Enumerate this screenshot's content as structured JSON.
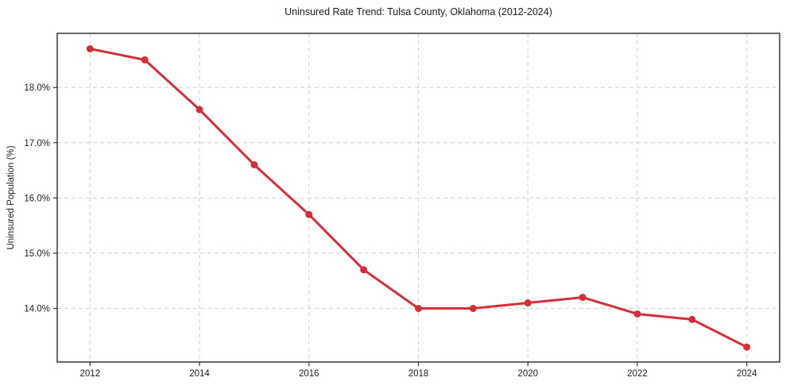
{
  "chart_data": {
    "type": "line",
    "title": "Uninsured Rate Trend: Tulsa County, Oklahoma (2012-2024)",
    "xlabel": "",
    "ylabel": "Uninsured Population (%)",
    "x": [
      2012,
      2013,
      2014,
      2015,
      2016,
      2017,
      2018,
      2019,
      2020,
      2021,
      2022,
      2023,
      2024
    ],
    "values": [
      18.7,
      18.5,
      17.6,
      16.6,
      15.7,
      14.7,
      14.0,
      14.0,
      14.1,
      14.2,
      13.9,
      13.8,
      13.3
    ],
    "xlim": [
      2011.4,
      2024.6
    ],
    "ylim": [
      13.03,
      18.98
    ],
    "xticks": {
      "values": [
        2012,
        2014,
        2016,
        2018,
        2020,
        2022,
        2024
      ],
      "labels": [
        "2012",
        "2014",
        "2016",
        "2018",
        "2020",
        "2022",
        "2024"
      ]
    },
    "yticks": {
      "values": [
        14,
        15,
        16,
        17,
        18
      ],
      "labels": [
        "14.0%",
        "15.0%",
        "16.0%",
        "17.0%",
        "18.0%"
      ]
    },
    "grid": true,
    "legend": "none",
    "line_color": "#d32f38",
    "marker_color": "#d32f38",
    "grid_color": "#cfcfcf",
    "spine_color": "#1a1a1a",
    "tick_color": "#333333",
    "background": "#ffffff"
  }
}
